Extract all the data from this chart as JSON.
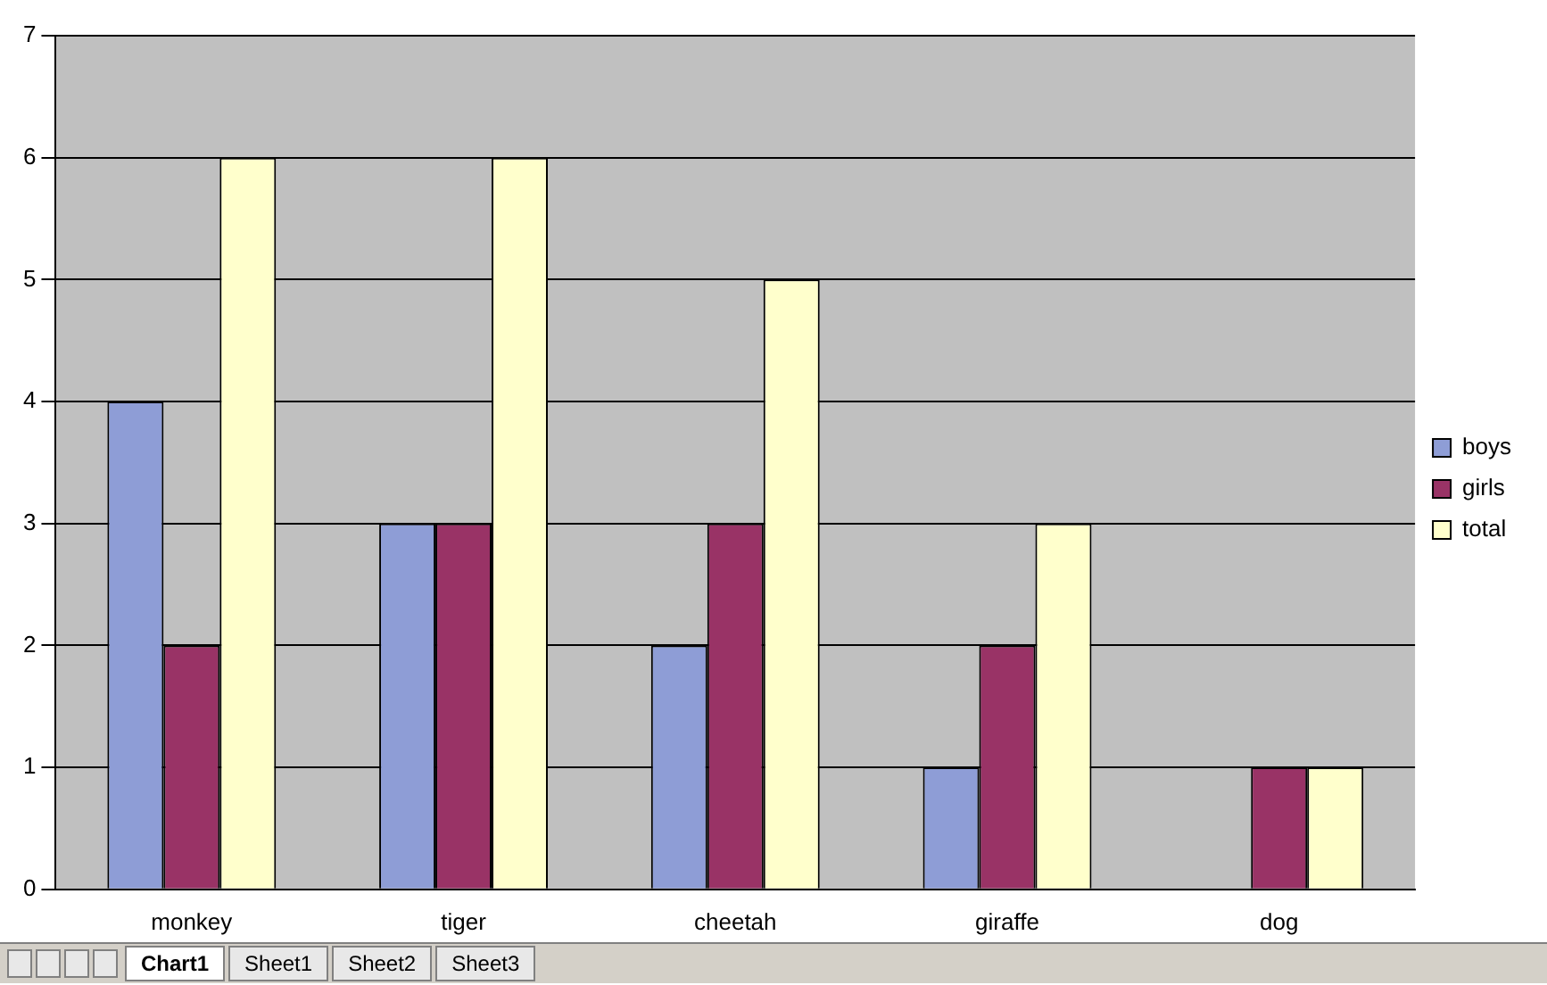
{
  "chart_data": {
    "type": "bar",
    "categories": [
      "monkey",
      "tiger",
      "cheetah",
      "giraffe",
      "dog"
    ],
    "series": [
      {
        "name": "boys",
        "color": "#8e9dd6",
        "values": [
          4,
          3,
          2,
          1,
          0
        ]
      },
      {
        "name": "girls",
        "color": "#993366",
        "values": [
          2,
          3,
          3,
          2,
          1
        ]
      },
      {
        "name": "total",
        "color": "#ffffcc",
        "values": [
          6,
          6,
          5,
          3,
          1
        ]
      }
    ],
    "ylim": [
      0,
      7
    ],
    "yticks": [
      0,
      1,
      2,
      3,
      4,
      5,
      6,
      7
    ],
    "grid": "y",
    "legend": "right",
    "annotations": [
      "Chart1",
      "Sheet1",
      "Sheet2",
      "Sheet3"
    ]
  }
}
